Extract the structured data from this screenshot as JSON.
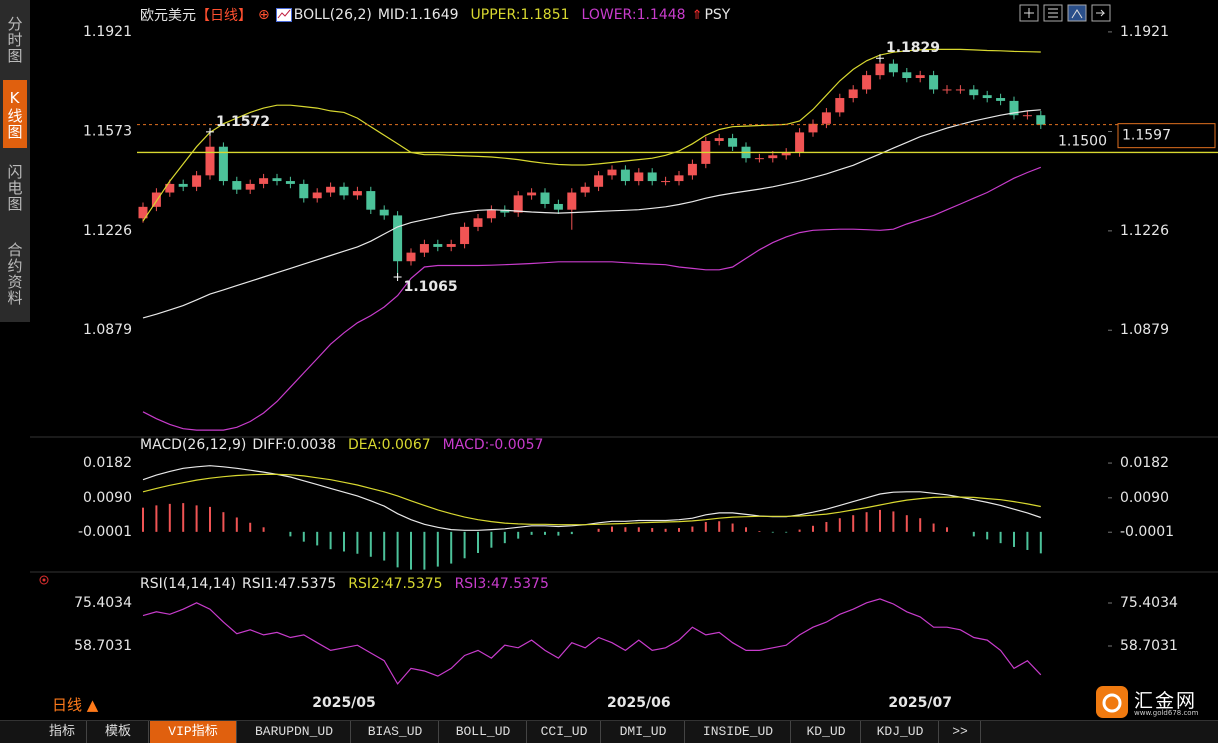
{
  "sidebar": {
    "tabs": [
      "分时图",
      "K线图",
      "闪电图",
      "合约资料"
    ]
  },
  "header": {
    "symbol": "欧元美元",
    "period": "【日线】",
    "indicator": "BOLL(26,2)",
    "extra": "PSY"
  },
  "chart_data": [
    {
      "type": "candlestick",
      "up_color": "#f05454",
      "down_color": "#4cc29a",
      "categories": [
        null,
        null,
        null,
        null,
        null,
        null,
        null,
        null,
        null,
        null,
        null,
        null,
        null,
        null,
        null,
        "2025/05",
        null,
        null,
        null,
        null,
        null,
        null,
        null,
        null,
        null,
        null,
        null,
        null,
        null,
        null,
        null,
        null,
        null,
        null,
        null,
        null,
        null,
        "2025/06",
        null,
        null,
        null,
        null,
        null,
        null,
        null,
        null,
        null,
        null,
        null,
        null,
        null,
        null,
        null,
        null,
        null,
        null,
        null,
        null,
        "2025/07",
        null,
        null,
        null,
        null,
        null,
        null,
        null,
        null,
        null
      ],
      "open": [
        1.127,
        1.131,
        1.136,
        1.139,
        1.138,
        1.142,
        1.152,
        1.14,
        1.137,
        1.139,
        1.141,
        1.14,
        1.139,
        1.134,
        1.136,
        1.138,
        1.135,
        1.1365,
        1.13,
        1.128,
        1.112,
        1.115,
        1.118,
        1.117,
        1.118,
        1.124,
        1.127,
        1.13,
        1.129,
        1.135,
        1.136,
        1.132,
        1.13,
        1.136,
        1.138,
        1.142,
        1.144,
        1.14,
        1.143,
        1.14,
        1.14,
        1.142,
        1.146,
        1.154,
        1.155,
        1.152,
        1.148,
        1.148,
        1.149,
        1.15,
        1.157,
        1.16,
        1.164,
        1.169,
        1.172,
        1.177,
        1.181,
        1.178,
        1.176,
        1.177,
        1.172,
        1.172,
        1.172,
        1.17,
        1.169,
        1.168,
        1.163,
        1.163
      ],
      "high": [
        1.1325,
        1.1375,
        1.1405,
        1.1405,
        1.1435,
        1.1572,
        1.1535,
        1.1415,
        1.1405,
        1.1425,
        1.1425,
        1.1415,
        1.1405,
        1.1375,
        1.1395,
        1.1395,
        1.138,
        1.138,
        1.1315,
        1.1295,
        1.1165,
        1.1195,
        1.1195,
        1.1195,
        1.1255,
        1.1285,
        1.1315,
        1.1315,
        1.1365,
        1.1375,
        1.1375,
        1.1335,
        1.1375,
        1.1395,
        1.1435,
        1.1455,
        1.1455,
        1.1445,
        1.1445,
        1.1415,
        1.1435,
        1.1475,
        1.1555,
        1.1565,
        1.1565,
        1.1535,
        1.1495,
        1.1505,
        1.1515,
        1.1585,
        1.1615,
        1.1655,
        1.1705,
        1.1735,
        1.1785,
        1.1829,
        1.1825,
        1.1795,
        1.1785,
        1.1785,
        1.1735,
        1.1735,
        1.1735,
        1.1715,
        1.1705,
        1.1695,
        1.1645,
        1.1645
      ],
      "low": [
        1.1255,
        1.1295,
        1.1345,
        1.1365,
        1.1365,
        1.1405,
        1.1385,
        1.1355,
        1.1355,
        1.1375,
        1.1385,
        1.1375,
        1.1325,
        1.1325,
        1.1345,
        1.1335,
        1.1335,
        1.1285,
        1.1265,
        1.1065,
        1.1105,
        1.1135,
        1.1155,
        1.1155,
        1.1165,
        1.1225,
        1.1255,
        1.1275,
        1.1275,
        1.1335,
        1.1305,
        1.1285,
        1.123,
        1.1345,
        1.1365,
        1.1405,
        1.1385,
        1.1385,
        1.1385,
        1.1385,
        1.1385,
        1.1405,
        1.1445,
        1.1525,
        1.1505,
        1.1465,
        1.1465,
        1.1465,
        1.1475,
        1.1485,
        1.1555,
        1.1585,
        1.1625,
        1.1675,
        1.1705,
        1.1755,
        1.1765,
        1.1745,
        1.1745,
        1.1705,
        1.1705,
        1.1705,
        1.1685,
        1.1675,
        1.1665,
        1.1615,
        1.1615,
        1.1582
      ],
      "close": [
        1.131,
        1.136,
        1.139,
        1.138,
        1.142,
        1.152,
        1.14,
        1.137,
        1.139,
        1.141,
        1.14,
        1.139,
        1.134,
        1.136,
        1.138,
        1.135,
        1.1365,
        1.13,
        1.128,
        1.112,
        1.115,
        1.118,
        1.117,
        1.118,
        1.124,
        1.127,
        1.13,
        1.129,
        1.135,
        1.136,
        1.132,
        1.13,
        1.136,
        1.138,
        1.142,
        1.144,
        1.14,
        1.143,
        1.14,
        1.14,
        1.142,
        1.146,
        1.154,
        1.155,
        1.152,
        1.148,
        1.148,
        1.149,
        1.15,
        1.157,
        1.16,
        1.164,
        1.169,
        1.172,
        1.177,
        1.181,
        1.178,
        1.176,
        1.177,
        1.172,
        1.172,
        1.172,
        1.17,
        1.169,
        1.168,
        1.163,
        1.163,
        1.1597
      ],
      "series": [
        {
          "name": "MID:",
          "color": "#e8e8e8",
          "values": [
            1.0922,
            1.0935,
            1.095,
            1.0965,
            1.0985,
            1.1005,
            1.102,
            1.1035,
            1.105,
            1.1065,
            1.108,
            1.1095,
            1.111,
            1.1125,
            1.114,
            1.1155,
            1.117,
            1.119,
            1.1215,
            1.124,
            1.1255,
            1.1265,
            1.1275,
            1.1285,
            1.1292,
            1.1298,
            1.13,
            1.1298,
            1.1295,
            1.1292,
            1.129,
            1.1288,
            1.129,
            1.1292,
            1.1294,
            1.1296,
            1.1298,
            1.13,
            1.1305,
            1.131,
            1.1318,
            1.1328,
            1.134,
            1.135,
            1.1358,
            1.1365,
            1.1372,
            1.138,
            1.139,
            1.14,
            1.1412,
            1.1425,
            1.144,
            1.1455,
            1.1475,
            1.1495,
            1.1515,
            1.1535,
            1.1555,
            1.157,
            1.1585,
            1.1598,
            1.161,
            1.162,
            1.163,
            1.1638,
            1.1645,
            1.1649
          ]
        },
        {
          "name": "UPPER:",
          "color": "#d8d830",
          "values": [
            1.126,
            1.133,
            1.14,
            1.146,
            1.152,
            1.157,
            1.16,
            1.162,
            1.164,
            1.1655,
            1.1665,
            1.1665,
            1.166,
            1.1655,
            1.1645,
            1.164,
            1.162,
            1.159,
            1.156,
            1.153,
            1.15,
            1.1492,
            1.1492,
            1.149,
            1.1488,
            1.1486,
            1.1484,
            1.148,
            1.1475,
            1.1468,
            1.1462,
            1.1458,
            1.1456,
            1.1456,
            1.146,
            1.1465,
            1.147,
            1.1475,
            1.148,
            1.149,
            1.1505,
            1.153,
            1.156,
            1.158,
            1.159,
            1.1592,
            1.1594,
            1.1596,
            1.1598,
            1.161,
            1.165,
            1.17,
            1.175,
            1.179,
            1.182,
            1.184,
            1.185,
            1.1855,
            1.1858,
            1.186,
            1.186,
            1.186,
            1.1858,
            1.1856,
            1.1855,
            1.1853,
            1.1852,
            1.1851
          ]
        },
        {
          "name": "LOWER:",
          "color": "#c83ccc",
          "values": [
            1.0594,
            1.057,
            1.055,
            1.0535,
            1.053,
            1.053,
            1.053,
            1.054,
            1.056,
            1.059,
            1.063,
            1.068,
            1.073,
            1.078,
            1.083,
            1.087,
            1.0905,
            1.093,
            1.096,
            1.1,
            1.106,
            1.11,
            1.1105,
            1.1105,
            1.1105,
            1.1105,
            1.1106,
            1.1108,
            1.111,
            1.1112,
            1.1115,
            1.1118,
            1.1118,
            1.1118,
            1.1118,
            1.1118,
            1.1115,
            1.1112,
            1.111,
            1.1108,
            1.11,
            1.1095,
            1.109,
            1.109,
            1.11,
            1.113,
            1.116,
            1.1185,
            1.1205,
            1.122,
            1.1228,
            1.123,
            1.1232,
            1.1232,
            1.123,
            1.1228,
            1.1232,
            1.125,
            1.1265,
            1.128,
            1.13,
            1.132,
            1.134,
            1.136,
            1.1385,
            1.141,
            1.143,
            1.1448
          ]
        }
      ],
      "hline": {
        "value": 1.15,
        "label": "1.1500",
        "color": "#d8d830"
      },
      "ylim": [
        1.0513,
        1.2015
      ],
      "yticks": [
        1.0879,
        1.1226,
        1.1573,
        1.1921
      ]
    },
    {
      "type": "macd",
      "title": "MACD(26,12,9)",
      "up_color": "#f05454",
      "down_color": "#4cc29a",
      "series": [
        {
          "name": "DIFF:",
          "color": "#e8e8e8",
          "values": [
            0.0138,
            0.015,
            0.016,
            0.0168,
            0.0172,
            0.0175,
            0.0172,
            0.0168,
            0.0163,
            0.0158,
            0.0152,
            0.0145,
            0.0135,
            0.0125,
            0.0115,
            0.0105,
            0.0095,
            0.0082,
            0.0068,
            0.0048,
            0.0032,
            0.002,
            0.0012,
            0.0006,
            0.0004,
            0.0004,
            0.0006,
            0.0008,
            0.0012,
            0.0016,
            0.0016,
            0.0014,
            0.0016,
            0.0019,
            0.0024,
            0.0028,
            0.0028,
            0.003,
            0.003,
            0.003,
            0.0032,
            0.0036,
            0.0045,
            0.005,
            0.005,
            0.0046,
            0.0042,
            0.004,
            0.004,
            0.0045,
            0.0052,
            0.006,
            0.007,
            0.008,
            0.009,
            0.01,
            0.0105,
            0.0106,
            0.0106,
            0.0102,
            0.0098,
            0.0092,
            0.0085,
            0.0078,
            0.007,
            0.006,
            0.005,
            0.0038
          ]
        },
        {
          "name": "DEA:",
          "color": "#d8d830",
          "values": [
            0.0106,
            0.0115,
            0.0123,
            0.013,
            0.0137,
            0.0142,
            0.0146,
            0.0149,
            0.0151,
            0.0152,
            0.0152,
            0.0151,
            0.0148,
            0.0143,
            0.0138,
            0.0131,
            0.0124,
            0.0115,
            0.0106,
            0.0095,
            0.0082,
            0.007,
            0.0058,
            0.0048,
            0.0039,
            0.0032,
            0.0027,
            0.0023,
            0.0021,
            0.002,
            0.002,
            0.0019,
            0.0019,
            0.0019,
            0.002,
            0.0021,
            0.0022,
            0.0024,
            0.0025,
            0.0026,
            0.0027,
            0.0029,
            0.0032,
            0.0036,
            0.0039,
            0.004,
            0.0041,
            0.0041,
            0.0041,
            0.0042,
            0.0044,
            0.0047,
            0.0052,
            0.0058,
            0.0064,
            0.0071,
            0.0078,
            0.0084,
            0.0088,
            0.0091,
            0.0092,
            0.0092,
            0.0091,
            0.0088,
            0.0085,
            0.008,
            0.0074,
            0.0067
          ]
        },
        {
          "name": "MACD:",
          "color": "#c83ccc",
          "kind": "bar",
          "values": [
            0.0064,
            0.007,
            0.0074,
            0.0076,
            0.007,
            0.0066,
            0.0052,
            0.0038,
            0.0024,
            0.0012,
            0.0,
            -0.0012,
            -0.0026,
            -0.0036,
            -0.0046,
            -0.0052,
            -0.0058,
            -0.0066,
            -0.0076,
            -0.0094,
            -0.01,
            -0.01,
            -0.0092,
            -0.0084,
            -0.007,
            -0.0056,
            -0.0042,
            -0.003,
            -0.0018,
            -0.0008,
            -0.0008,
            -0.001,
            -0.0006,
            0.0,
            0.0008,
            0.0014,
            0.0012,
            0.0012,
            0.001,
            0.0008,
            0.001,
            0.0014,
            0.0026,
            0.0028,
            0.0022,
            0.0012,
            0.0002,
            -0.0002,
            -0.0002,
            0.0006,
            0.0016,
            0.0026,
            0.0036,
            0.0044,
            0.0052,
            0.0058,
            0.0054,
            0.0044,
            0.0036,
            0.0022,
            0.0012,
            0.0,
            -0.0012,
            -0.002,
            -0.003,
            -0.004,
            -0.0048,
            -0.0057
          ]
        }
      ],
      "ylim": [
        -0.0101,
        0.0243
      ],
      "yticks": [
        -0.0001,
        {
          "value": 0.009,
          "label": "0.0090"
        },
        0.0182
      ]
    },
    {
      "type": "line",
      "title": "RSI(14,14,14)",
      "color": "#c83ccc",
      "legend": [
        {
          "name": "RSI1:",
          "color": "#e8e8e8"
        },
        {
          "name": "RSI2:",
          "color": "#d8d830"
        },
        {
          "name": "RSI3:",
          "color": "#c83ccc"
        }
      ],
      "values": [
        70.5,
        72,
        71,
        73,
        75.5,
        73,
        68,
        63.5,
        65,
        63,
        64,
        62,
        63,
        60,
        57,
        58,
        59,
        56,
        53,
        44,
        50,
        49,
        47,
        50,
        55,
        57,
        54,
        59,
        58,
        61,
        57,
        54,
        60,
        58,
        62,
        60,
        57,
        61,
        57,
        58,
        61,
        66,
        63,
        64,
        60,
        57,
        57,
        58,
        59,
        63,
        66,
        68,
        71,
        73,
        75.5,
        77,
        75,
        72,
        70,
        66,
        66,
        65,
        62,
        61,
        57,
        50,
        53,
        47.5375
      ],
      "ylim": [
        41.62,
        86.28
      ],
      "yticks": [
        58.7031,
        75.4034
      ]
    }
  ],
  "footer": {
    "period": "日线 ▲",
    "tabs": [
      "指标",
      "模板",
      "VIP指标",
      "BARUPDN_UD",
      "BIAS_UD",
      "BOLL_UD",
      "CCI_UD",
      "DMI_UD",
      "INSIDE_UD",
      "KD_UD",
      "KDJ_UD",
      ">>"
    ]
  },
  "logo": {
    "name": "汇金网",
    "url": "www.gold678.com"
  }
}
